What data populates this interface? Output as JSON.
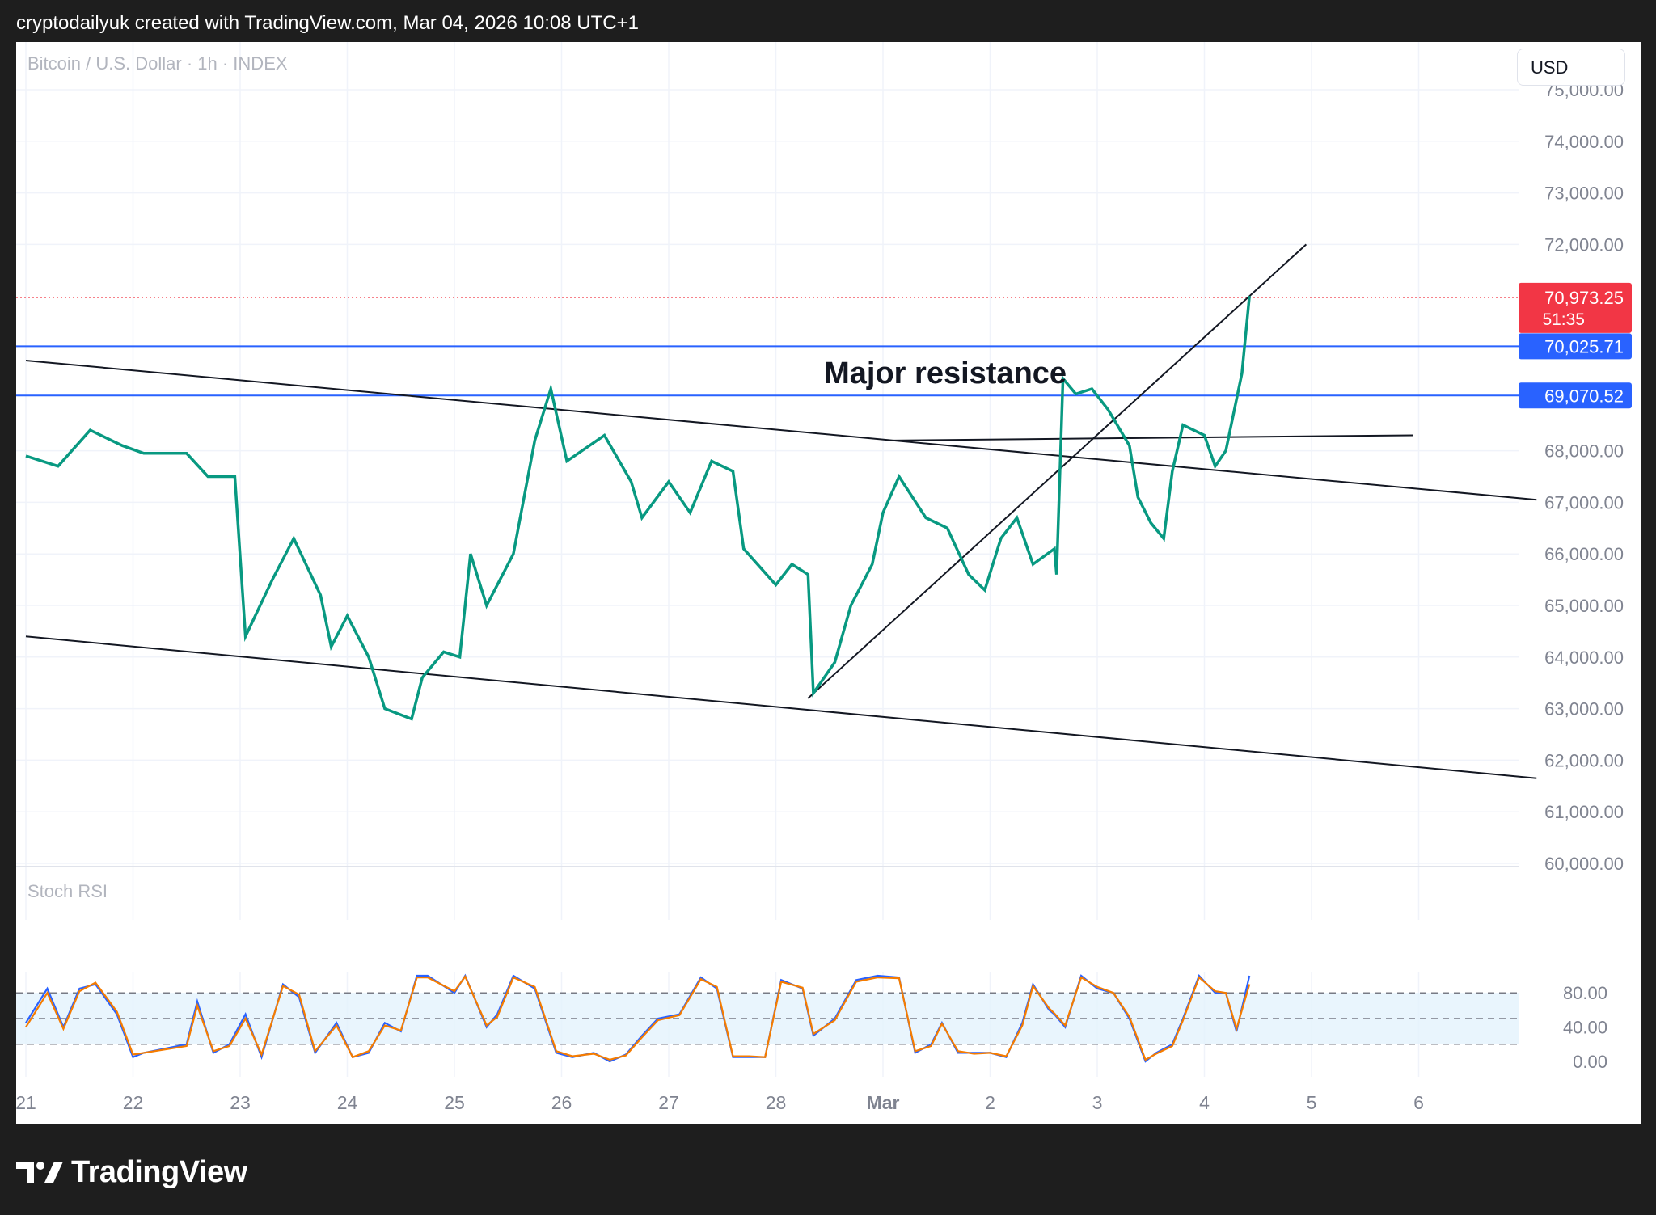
{
  "header": {
    "attribution": "cryptodailyuk created with TradingView.com, Mar 04, 2026 10:08 UTC+1"
  },
  "chart_header": {
    "symbol": "Bitcoin / U.S. Dollar · 1h · INDEX",
    "currency_button": "USD"
  },
  "footer": {
    "brand": "TradingView"
  },
  "chart_data": [
    {
      "type": "candlestick",
      "title": "Bitcoin / U.S. Dollar · 1h · INDEX",
      "ylim": [
        59800,
        76300
      ],
      "y_ticks": [
        {
          "value": 60000,
          "label": "60,000.00"
        },
        {
          "value": 61000,
          "label": "61,000.00"
        },
        {
          "value": 62000,
          "label": "62,000.00"
        },
        {
          "value": 63000,
          "label": "63,000.00"
        },
        {
          "value": 64000,
          "label": "64,000.00"
        },
        {
          "value": 65000,
          "label": "65,000.00"
        },
        {
          "value": 66000,
          "label": "66,000.00"
        },
        {
          "value": 67000,
          "label": "67,000.00"
        },
        {
          "value": 68000,
          "label": "68,000.00"
        },
        {
          "value": 72000,
          "label": "72,000.00"
        },
        {
          "value": 73000,
          "label": "73,000.00"
        },
        {
          "value": 74000,
          "label": "74,000.00"
        },
        {
          "value": 75000,
          "label": "75,000.00"
        }
      ],
      "x_ticks": [
        "21",
        "22",
        "23",
        "24",
        "25",
        "26",
        "27",
        "28",
        "Mar",
        "2",
        "3",
        "4",
        "5",
        "6"
      ],
      "price_path": [
        [
          21.0,
          67900
        ],
        [
          21.3,
          67700
        ],
        [
          21.6,
          68400
        ],
        [
          21.9,
          68100
        ],
        [
          22.1,
          67950
        ],
        [
          22.5,
          67950
        ],
        [
          22.7,
          67500
        ],
        [
          22.95,
          67500
        ],
        [
          23.05,
          64400
        ],
        [
          23.3,
          65500
        ],
        [
          23.5,
          66300
        ],
        [
          23.75,
          65200
        ],
        [
          23.85,
          64200
        ],
        [
          24.0,
          64800
        ],
        [
          24.2,
          64000
        ],
        [
          24.35,
          63000
        ],
        [
          24.6,
          62800
        ],
        [
          24.7,
          63600
        ],
        [
          24.9,
          64100
        ],
        [
          25.05,
          64000
        ],
        [
          25.15,
          66000
        ],
        [
          25.3,
          65000
        ],
        [
          25.55,
          66000
        ],
        [
          25.75,
          68200
        ],
        [
          25.9,
          69200
        ],
        [
          26.05,
          67800
        ],
        [
          26.4,
          68300
        ],
        [
          26.65,
          67400
        ],
        [
          26.75,
          66700
        ],
        [
          27.0,
          67400
        ],
        [
          27.2,
          66800
        ],
        [
          27.4,
          67800
        ],
        [
          27.6,
          67600
        ],
        [
          27.7,
          66100
        ],
        [
          28.0,
          65400
        ],
        [
          28.15,
          65800
        ],
        [
          28.3,
          65600
        ],
        [
          28.35,
          63300
        ],
        [
          28.55,
          63900
        ],
        [
          28.7,
          65000
        ],
        [
          28.9,
          65800
        ],
        [
          29.0,
          66800
        ],
        [
          29.15,
          67500
        ],
        [
          29.4,
          66700
        ],
        [
          29.6,
          66500
        ],
        [
          29.8,
          65600
        ],
        [
          29.95,
          65300
        ],
        [
          30.1,
          66300
        ],
        [
          30.25,
          66700
        ],
        [
          30.4,
          65800
        ],
        [
          30.6,
          66100
        ],
        [
          30.62,
          65600
        ],
        [
          30.68,
          69400
        ],
        [
          30.8,
          69100
        ],
        [
          30.95,
          69200
        ],
        [
          31.1,
          68800
        ],
        [
          31.3,
          68100
        ],
        [
          31.38,
          67100
        ],
        [
          31.5,
          66600
        ],
        [
          31.62,
          66300
        ],
        [
          31.7,
          67600
        ],
        [
          31.8,
          68500
        ],
        [
          32.0,
          68300
        ],
        [
          32.1,
          67700
        ],
        [
          32.2,
          68000
        ],
        [
          32.35,
          69500
        ],
        [
          32.42,
          71000
        ]
      ],
      "last_price": {
        "label": "70,973.25",
        "countdown": "51:35",
        "value": 70973.25,
        "color": "#f23645"
      },
      "horizontal_levels": [
        {
          "label": "70,025.71",
          "value": 70025.71,
          "color": "#2962ff"
        },
        {
          "label": "69,070.52",
          "value": 69070.52,
          "color": "#2962ff"
        }
      ],
      "trendlines": [
        {
          "from": [
            21.0,
            69750
          ],
          "to": [
            35.1,
            67050
          ]
        },
        {
          "from": [
            21.0,
            64400
          ],
          "to": [
            35.1,
            61650
          ]
        },
        {
          "from": [
            28.3,
            63200
          ],
          "to": [
            32.95,
            72000
          ]
        },
        {
          "from": [
            29.1,
            68200
          ],
          "to": [
            33.95,
            68300
          ]
        }
      ],
      "annotations": [
        {
          "text": "Major resistance",
          "x": 28.45,
          "y": 69500
        }
      ],
      "colors": {
        "up": "#089981",
        "down": "#f23645",
        "line": "#131722"
      }
    },
    {
      "type": "line",
      "title": "Stoch RSI",
      "ylim": [
        -5,
        105
      ],
      "y_ticks": [
        {
          "value": 0,
          "label": "0.00"
        },
        {
          "value": 40,
          "label": "40.00"
        },
        {
          "value": 80,
          "label": "80.00"
        }
      ],
      "band": [
        20,
        80
      ],
      "series": [
        {
          "color": "#2962ff",
          "x": [
            21.0,
            21.2,
            21.35,
            21.5,
            21.65,
            21.85,
            22.0,
            22.1,
            22.3,
            22.5,
            22.6,
            22.75,
            22.9,
            23.05,
            23.2,
            23.4,
            23.55,
            23.7,
            23.9,
            24.05,
            24.2,
            24.35,
            24.5,
            24.65,
            24.75,
            25.0,
            25.1,
            25.3,
            25.4,
            25.55,
            25.75,
            25.95,
            26.1,
            26.3,
            26.45,
            26.6,
            26.75,
            26.9,
            27.1,
            27.3,
            27.45,
            27.6,
            27.75,
            27.9,
            28.05,
            28.25,
            28.35,
            28.55,
            28.75,
            28.95,
            29.15,
            29.3,
            29.45,
            29.55,
            29.7,
            29.85,
            30.0,
            30.15,
            30.3,
            30.4,
            30.55,
            30.6,
            30.7,
            30.85,
            31.0,
            31.15,
            31.3,
            31.45,
            31.55,
            31.7,
            31.8,
            31.95,
            32.1,
            32.2,
            32.3,
            32.42
          ],
          "values": [
            45,
            85,
            40,
            85,
            90,
            55,
            5,
            10,
            15,
            20,
            70,
            10,
            20,
            55,
            5,
            90,
            75,
            10,
            45,
            5,
            10,
            45,
            35,
            100,
            100,
            80,
            100,
            40,
            55,
            100,
            85,
            10,
            5,
            10,
            0,
            8,
            30,
            50,
            55,
            98,
            85,
            5,
            5,
            5,
            95,
            85,
            30,
            50,
            95,
            100,
            98,
            10,
            20,
            45,
            10,
            10,
            10,
            5,
            45,
            90,
            60,
            55,
            40,
            100,
            85,
            80,
            50,
            0,
            10,
            20,
            50,
            100,
            80,
            80,
            35,
            100
          ]
        },
        {
          "color": "#f57c00",
          "x": [
            21.0,
            21.2,
            21.35,
            21.5,
            21.65,
            21.85,
            22.0,
            22.1,
            22.3,
            22.5,
            22.6,
            22.75,
            22.9,
            23.05,
            23.2,
            23.4,
            23.55,
            23.7,
            23.9,
            24.05,
            24.2,
            24.35,
            24.5,
            24.65,
            24.75,
            25.0,
            25.1,
            25.3,
            25.4,
            25.55,
            25.75,
            25.95,
            26.1,
            26.3,
            26.45,
            26.6,
            26.75,
            26.9,
            27.1,
            27.3,
            27.45,
            27.6,
            27.75,
            27.9,
            28.05,
            28.25,
            28.35,
            28.55,
            28.75,
            28.95,
            29.15,
            29.3,
            29.45,
            29.55,
            29.7,
            29.85,
            30.0,
            30.15,
            30.3,
            30.4,
            30.55,
            30.6,
            30.7,
            30.85,
            31.0,
            31.15,
            31.3,
            31.45,
            31.55,
            31.7,
            31.8,
            31.95,
            32.1,
            32.2,
            32.3,
            32.42
          ],
          "values": [
            40,
            80,
            38,
            82,
            92,
            58,
            8,
            10,
            14,
            18,
            65,
            12,
            18,
            50,
            8,
            88,
            78,
            12,
            42,
            5,
            12,
            42,
            36,
            98,
            98,
            82,
            99,
            42,
            52,
            98,
            87,
            12,
            6,
            9,
            2,
            7,
            28,
            48,
            54,
            96,
            87,
            6,
            6,
            5,
            93,
            86,
            32,
            48,
            93,
            98,
            97,
            12,
            18,
            44,
            12,
            9,
            10,
            6,
            42,
            88,
            62,
            56,
            42,
            98,
            87,
            80,
            52,
            2,
            9,
            18,
            48,
            98,
            82,
            80,
            38,
            90
          ]
        }
      ]
    }
  ]
}
